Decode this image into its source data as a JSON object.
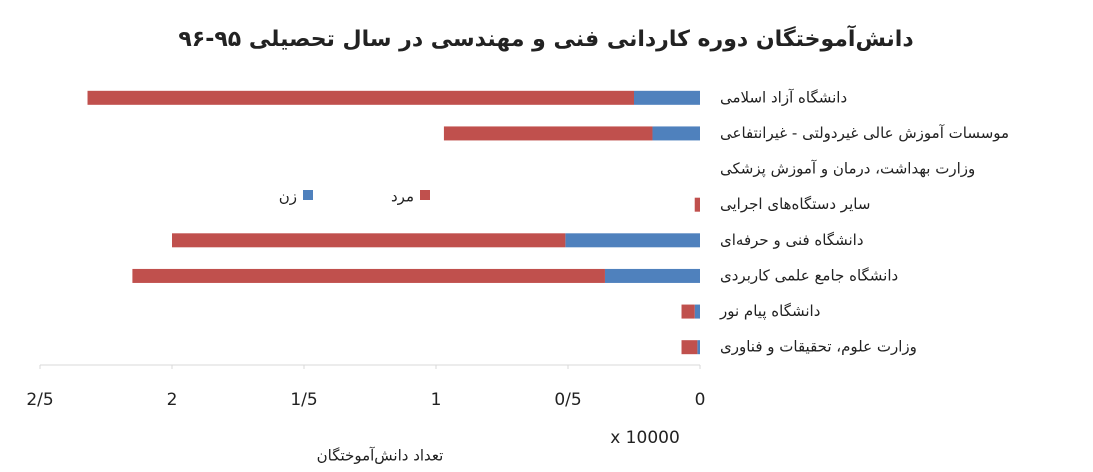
{
  "chart_data": {
    "type": "barh_stacked",
    "title": "دانش‌آموختگان دوره کاردانی فنی و مهندسی در سال تحصیلی ۹۵-۹۶",
    "xlabel": "تعداد دانش‌آموختگان",
    "display_unit": "x 10000",
    "categories": [
      "دانشگاه آزاد اسلامی",
      "موسسات آموزش عالی غیردولتی - غیرانتفاعی",
      "وزارت بهداشت، درمان و آموزش پزشکی",
      "سایر دستگاه‌های اجرایی",
      "دانشگاه فنی و حرفه‌ای",
      "دانشگاه جامع علمی کاربردی",
      "دانشگاه پیام نور",
      "وزارت علوم، تحقیقات و فناوری"
    ],
    "series": [
      {
        "name": "زن",
        "color": "#4f81bd",
        "values": [
          0.25,
          0.18,
          0,
          0,
          0.51,
          0.36,
          0.02,
          0.01
        ]
      },
      {
        "name": "مرد",
        "color": "#c0504d",
        "values": [
          2.07,
          0.79,
          0,
          0.02,
          1.49,
          1.79,
          0.05,
          0.06
        ]
      }
    ],
    "xlim": [
      0,
      2.5
    ],
    "x_reversed": true,
    "xticks": [
      0,
      {
        "value": 0.5,
        "label": "0/5"
      },
      1,
      {
        "value": 1.5,
        "label": "1/5"
      },
      2,
      {
        "value": 2.5,
        "label": "2/5"
      }
    ],
    "legend": "inside-center"
  }
}
